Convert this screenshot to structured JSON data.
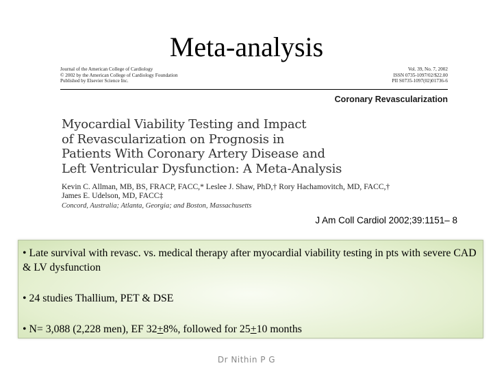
{
  "slide": {
    "title": "Meta-analysis"
  },
  "article": {
    "journal_lines": [
      "Journal of the American College of Cardiology",
      "© 2002 by the American College of Cardiology Foundation",
      "Published by Elsevier Science Inc."
    ],
    "issue_lines": [
      "Vol. 39, No. 7, 2002",
      "ISSN 0735-1097/02/$22.00",
      "PII S0735-1097(02)01736-6"
    ],
    "section": "Coronary Revascularization",
    "title_lines": [
      "Myocardial Viability Testing and Impact",
      "of Revascularization on Prognosis in",
      "Patients With Coronary Artery Disease and",
      "Left Ventricular Dysfunction: A Meta-Analysis"
    ],
    "author_lines": [
      "Kevin C. Allman, MB, BS, FRACP, FACC,* Leslee J. Shaw, PhD,† Rory Hachamovitch, MD, FACC,†",
      "James E. Udelson, MD, FACC‡"
    ],
    "affiliation": "Concord, Australia; Atlanta, Georgia; and Boston, Massachusetts"
  },
  "citation": {
    "journal": "J Am Coll Cardiol",
    "details": " 2002;39:1151– 8"
  },
  "summary": {
    "bullet1": "• Late survival with revasc. vs. medical therapy after myocardial viability testing in pts with severe CAD & LV dysfunction",
    "bullet2": "• 24 studies Thallium, PET & DSE",
    "bullet3_a": "• N= 3,088 (2,228 men), EF 32",
    "bullet3_pm1": "+",
    "bullet3_b": "8%, followed for 25",
    "bullet3_pm2": "+",
    "bullet3_c": "10 months"
  },
  "footer": {
    "author": "Dr Nithin P G"
  },
  "colors": {
    "box_background": "#e4efcf",
    "box_border": "#b8c4a4"
  }
}
